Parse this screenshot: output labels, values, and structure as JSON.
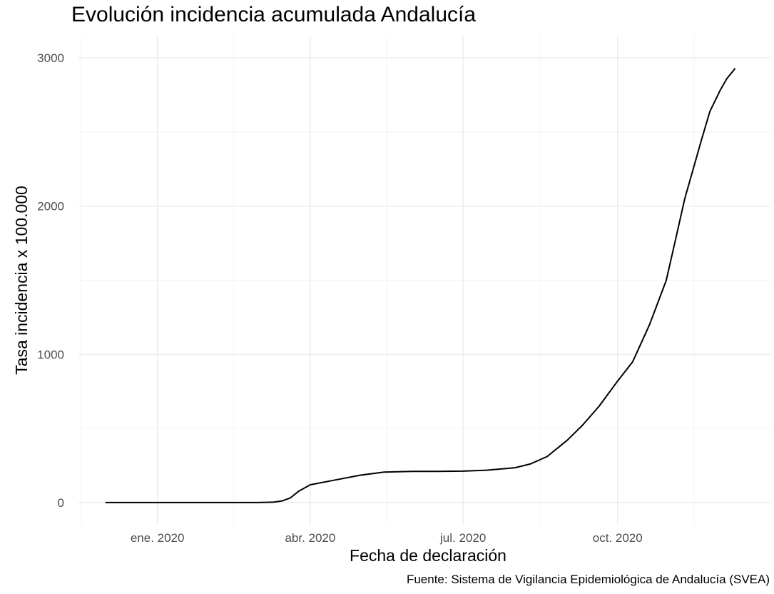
{
  "chart_data": {
    "type": "line",
    "title": "Evolución incidencia acumulada Andalucía",
    "xlabel": "Fecha de declaración",
    "ylabel": "Tasa incidencia x 100.000",
    "caption": "Fuente: Sistema de Vigilancia Epidemiológica de Andalucía (SVEA)",
    "xlim": [
      "2019-11-15",
      "2020-12-31"
    ],
    "ylim": [
      -150,
      3150
    ],
    "x_ticks": [
      {
        "date": "2020-01-01",
        "label": "ene. 2020"
      },
      {
        "date": "2020-04-01",
        "label": "abr. 2020"
      },
      {
        "date": "2020-07-01",
        "label": "jul. 2020"
      },
      {
        "date": "2020-10-01",
        "label": "oct. 2020"
      }
    ],
    "y_ticks": [
      0,
      1000,
      2000,
      3000
    ],
    "grid": true,
    "line_color": "#000000",
    "series": [
      {
        "x": [
          "2019-12-01",
          "2020-02-01",
          "2020-03-01",
          "2020-03-10",
          "2020-03-15",
          "2020-03-20",
          "2020-03-25",
          "2020-04-01",
          "2020-04-15",
          "2020-05-01",
          "2020-05-15",
          "2020-06-01",
          "2020-06-15",
          "2020-07-01",
          "2020-07-15",
          "2020-08-01",
          "2020-08-10",
          "2020-08-20",
          "2020-09-01",
          "2020-09-10",
          "2020-09-20",
          "2020-10-01",
          "2020-10-10",
          "2020-10-20",
          "2020-10-25",
          "2020-10-30",
          "2020-11-05",
          "2020-11-10",
          "2020-11-15",
          "2020-11-20",
          "2020-11-25",
          "2020-12-01",
          "2020-12-05",
          "2020-12-10"
        ],
        "y": [
          0,
          0,
          0,
          2,
          10,
          30,
          75,
          120,
          150,
          185,
          205,
          210,
          210,
          212,
          218,
          235,
          260,
          310,
          420,
          520,
          650,
          820,
          950,
          1200,
          1350,
          1500,
          1800,
          2050,
          2250,
          2450,
          2640,
          2780,
          2860,
          2930
        ]
      }
    ]
  }
}
